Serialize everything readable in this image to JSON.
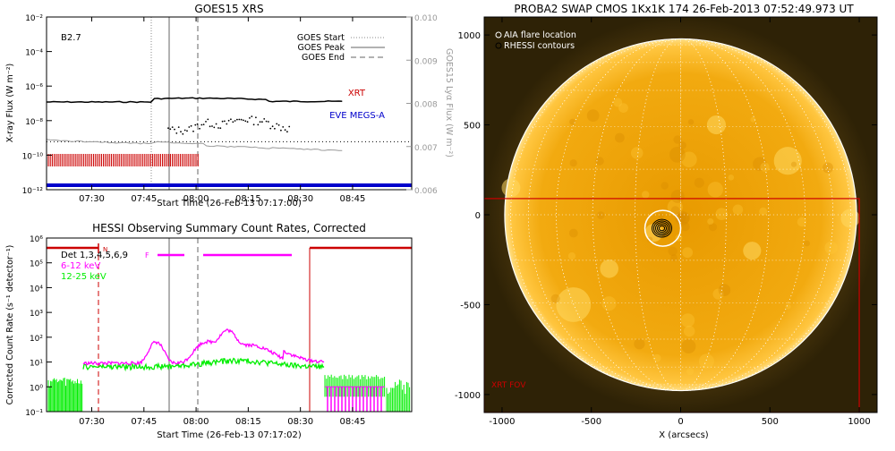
{
  "chart_data": [
    {
      "type": "line",
      "title": "GOES15 XRS",
      "xlabel": "Start Time (26-Feb-13 07:17:00)",
      "ylabel": "X-ray Flux (W m⁻²)",
      "ylabel_right": "GOES15 Lyα Flux (W m⁻²)",
      "y_scale": "log",
      "ylim": [
        1e-12,
        0.01
      ],
      "y2lim": [
        0.006,
        0.01
      ],
      "xlim": [
        "07:17",
        "09:02"
      ],
      "x_ticks": [
        "07:30",
        "07:45",
        "08:00",
        "08:15",
        "08:30",
        "08:45"
      ],
      "y_ticks": [
        "10⁻²",
        "10⁻⁴",
        "10⁻⁶",
        "10⁻⁸",
        "10⁻¹⁰",
        "10⁻¹²"
      ],
      "y2_ticks": [
        "0.010",
        "0.009",
        "0.008",
        "0.007",
        "0.006"
      ],
      "flare_class": "B2.7",
      "legend": [
        {
          "label": "GOES Start",
          "style": "dotted",
          "time": "07:47"
        },
        {
          "label": "GOES Peak",
          "style": "solid",
          "time": "07:53"
        },
        {
          "label": "GOES End",
          "style": "dashed",
          "time": "08:00"
        }
      ],
      "series": [
        {
          "name": "XRT",
          "color": "#cc0000"
        },
        {
          "name": "EVE MEGS-A",
          "color": "#0000cc"
        }
      ],
      "colors": {
        "long": "#000000",
        "short": "#666666",
        "lya": "#999999",
        "xrt": "#cc0000",
        "eve": "#0000cc"
      }
    },
    {
      "type": "line",
      "title": "HESSI Observing Summary Count Rates, Corrected",
      "xlabel": "Start Time (26-Feb-13 07:17:02)",
      "ylabel": "Corrected Count Rate (s⁻¹ detector⁻¹)",
      "y_scale": "log",
      "ylim": [
        0.1,
        1000000.0
      ],
      "xlim": [
        "07:17",
        "09:02"
      ],
      "x_ticks": [
        "07:30",
        "07:45",
        "08:00",
        "08:15",
        "08:30",
        "08:45"
      ],
      "y_ticks": [
        "10⁶",
        "10⁵",
        "10⁴",
        "10³",
        "10²",
        "10¹",
        "10⁰",
        "10⁻¹"
      ],
      "detectors_label": "Det 1,3,4,5,6,9",
      "flag_labels": [
        "N",
        "F"
      ],
      "series": [
        {
          "name": "6-12 keV",
          "color": "#ff00ff"
        },
        {
          "name": "12-25 keV",
          "color": "#00ee00"
        }
      ]
    },
    {
      "type": "heatmap",
      "title": "PROBA2 SWAP CMOS 1Kx1K 174 26-Feb-2013 07:52:49.973 UT",
      "xlabel": "X (arcsecs)",
      "xlim": [
        -1100,
        1100
      ],
      "ylim": [
        -1100,
        1100
      ],
      "x_ticks": [
        "-1000",
        "-500",
        "0",
        "500",
        "1000"
      ],
      "y_ticks": [
        "1000",
        "500",
        "0",
        "-500",
        "-1000"
      ],
      "legend": [
        "AIA flare location",
        "RHESSI contours"
      ],
      "fov_label": "XRT FOV",
      "solar_radius_arcsec": 985,
      "flare_center_arcsec": [
        -100,
        -75
      ],
      "xrt_fov": {
        "x": [
          -1100,
          1000
        ],
        "y": [
          -1100,
          90
        ]
      },
      "colors": {
        "sun": "#f5a800",
        "bg": "#3a2a08",
        "limb": "#ffffff",
        "fov": "#cc0000"
      }
    }
  ]
}
